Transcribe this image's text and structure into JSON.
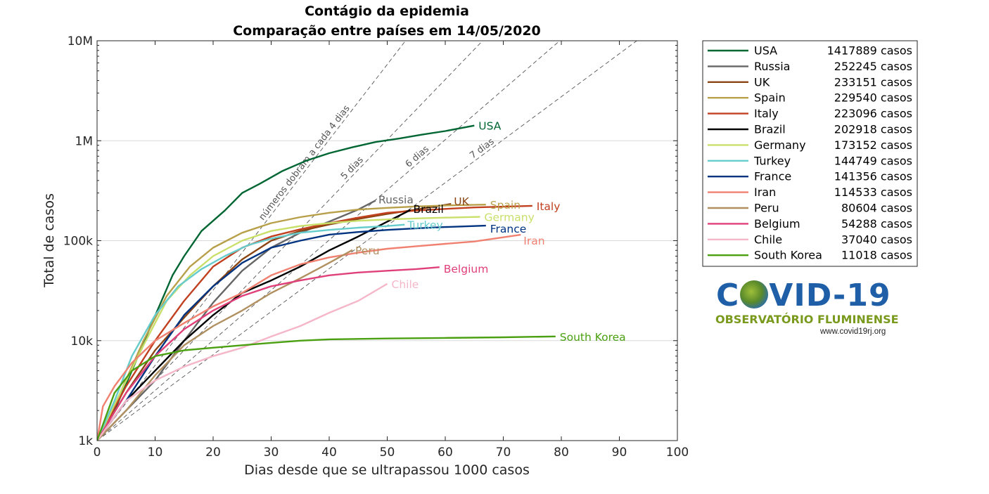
{
  "chart_data": {
    "type": "line",
    "title": "Contágio da epidemia",
    "subtitle": "Comparação entre países em 14/05/2020",
    "xlabel": "Dias desde que se ultrapassou 1000 casos",
    "ylabel": "Total de casos",
    "xlim": [
      0,
      100
    ],
    "ylim": [
      1000,
      10000000
    ],
    "yscale": "log",
    "grid": "horizontal",
    "legend_position": "outside-right",
    "x_ticks": [
      "0",
      "10",
      "20",
      "30",
      "40",
      "50",
      "60",
      "70",
      "80",
      "90",
      "100"
    ],
    "y_ticks": [
      {
        "value": 1000,
        "label": "1k"
      },
      {
        "value": 10000,
        "label": "10k"
      },
      {
        "value": 100000,
        "label": "100k"
      },
      {
        "value": 1000000,
        "label": "1M"
      },
      {
        "value": 10000000,
        "label": "10M"
      }
    ],
    "reference_lines": [
      {
        "doubling_days": 4,
        "label": "números dobram a cada 4 dias"
      },
      {
        "doubling_days": 5,
        "label": "5 dias"
      },
      {
        "doubling_days": 6,
        "label": "6 dias"
      },
      {
        "doubling_days": 7,
        "label": "7 dias"
      }
    ],
    "series": [
      {
        "name": "USA",
        "cases": "1417889",
        "color": "#006633",
        "points": [
          [
            0,
            1000
          ],
          [
            3,
            2000
          ],
          [
            6,
            5000
          ],
          [
            9,
            13000
          ],
          [
            13,
            45000
          ],
          [
            15,
            70000
          ],
          [
            18,
            125000
          ],
          [
            22,
            200000
          ],
          [
            25,
            300000
          ],
          [
            28,
            370000
          ],
          [
            32,
            500000
          ],
          [
            36,
            630000
          ],
          [
            40,
            750000
          ],
          [
            44,
            860000
          ],
          [
            48,
            970000
          ],
          [
            52,
            1050000
          ],
          [
            56,
            1150000
          ],
          [
            60,
            1250000
          ],
          [
            65,
            1417889
          ]
        ]
      },
      {
        "name": "Russia",
        "cases": "252245",
        "color": "#666666",
        "points": [
          [
            0,
            1000
          ],
          [
            5,
            2000
          ],
          [
            10,
            4000
          ],
          [
            15,
            10000
          ],
          [
            20,
            24000
          ],
          [
            25,
            50000
          ],
          [
            30,
            85000
          ],
          [
            35,
            120000
          ],
          [
            40,
            155000
          ],
          [
            45,
            205000
          ],
          [
            48,
            252245
          ]
        ]
      },
      {
        "name": "UK",
        "cases": "233151",
        "color": "#8b4513",
        "points": [
          [
            0,
            1000
          ],
          [
            5,
            3000
          ],
          [
            10,
            8000
          ],
          [
            15,
            17000
          ],
          [
            20,
            35000
          ],
          [
            25,
            65000
          ],
          [
            30,
            100000
          ],
          [
            35,
            125000
          ],
          [
            40,
            145000
          ],
          [
            45,
            165000
          ],
          [
            50,
            185000
          ],
          [
            55,
            205000
          ],
          [
            61,
            233151
          ]
        ]
      },
      {
        "name": "Spain",
        "cases": "229540",
        "color": "#b8a04a",
        "points": [
          [
            0,
            1000
          ],
          [
            4,
            3000
          ],
          [
            8,
            10000
          ],
          [
            12,
            28000
          ],
          [
            16,
            55000
          ],
          [
            20,
            85000
          ],
          [
            25,
            120000
          ],
          [
            30,
            150000
          ],
          [
            35,
            172000
          ],
          [
            40,
            190000
          ],
          [
            45,
            205000
          ],
          [
            50,
            213000
          ],
          [
            55,
            220000
          ],
          [
            60,
            225000
          ],
          [
            67,
            229540
          ]
        ]
      },
      {
        "name": "Italy",
        "cases": "223096",
        "color": "#c04020",
        "points": [
          [
            0,
            1000
          ],
          [
            5,
            3500
          ],
          [
            10,
            10000
          ],
          [
            15,
            25000
          ],
          [
            20,
            55000
          ],
          [
            25,
            85000
          ],
          [
            30,
            110000
          ],
          [
            35,
            130000
          ],
          [
            40,
            150000
          ],
          [
            45,
            170000
          ],
          [
            50,
            190000
          ],
          [
            55,
            200000
          ],
          [
            60,
            208000
          ],
          [
            65,
            215000
          ],
          [
            75,
            223096
          ]
        ]
      },
      {
        "name": "Brazil",
        "cases": "202918",
        "color": "#000000",
        "points": [
          [
            0,
            1000
          ],
          [
            5,
            2500
          ],
          [
            10,
            5000
          ],
          [
            15,
            10000
          ],
          [
            20,
            18000
          ],
          [
            25,
            30000
          ],
          [
            30,
            40000
          ],
          [
            35,
            55000
          ],
          [
            40,
            80000
          ],
          [
            45,
            110000
          ],
          [
            50,
            155000
          ],
          [
            54,
            202918
          ]
        ]
      },
      {
        "name": "Germany",
        "cases": "173152",
        "color": "#c8e06a",
        "points": [
          [
            0,
            1000
          ],
          [
            4,
            3000
          ],
          [
            8,
            9000
          ],
          [
            12,
            25000
          ],
          [
            16,
            45000
          ],
          [
            20,
            70000
          ],
          [
            25,
            100000
          ],
          [
            30,
            125000
          ],
          [
            35,
            140000
          ],
          [
            40,
            150000
          ],
          [
            45,
            158000
          ],
          [
            50,
            163000
          ],
          [
            55,
            167000
          ],
          [
            60,
            170000
          ],
          [
            66,
            173152
          ]
        ]
      },
      {
        "name": "Turkey",
        "cases": "144749",
        "color": "#66cccc",
        "points": [
          [
            0,
            1000
          ],
          [
            3,
            2500
          ],
          [
            6,
            7000
          ],
          [
            10,
            18000
          ],
          [
            14,
            35000
          ],
          [
            18,
            52000
          ],
          [
            22,
            70000
          ],
          [
            26,
            90000
          ],
          [
            30,
            105000
          ],
          [
            35,
            120000
          ],
          [
            40,
            128000
          ],
          [
            45,
            135000
          ],
          [
            50,
            140000
          ],
          [
            53,
            144749
          ]
        ]
      },
      {
        "name": "France",
        "cases": "141356",
        "color": "#003380",
        "points": [
          [
            0,
            1000
          ],
          [
            5,
            2500
          ],
          [
            10,
            7000
          ],
          [
            15,
            18000
          ],
          [
            20,
            35000
          ],
          [
            25,
            60000
          ],
          [
            30,
            85000
          ],
          [
            35,
            100000
          ],
          [
            40,
            115000
          ],
          [
            45,
            122000
          ],
          [
            50,
            128000
          ],
          [
            55,
            133000
          ],
          [
            60,
            137000
          ],
          [
            67,
            141356
          ]
        ]
      },
      {
        "name": "Iran",
        "cases": "114533",
        "color": "#f08070",
        "points": [
          [
            0,
            1000
          ],
          [
            1,
            2200
          ],
          [
            3,
            3500
          ],
          [
            6,
            6000
          ],
          [
            10,
            10000
          ],
          [
            15,
            15000
          ],
          [
            20,
            22000
          ],
          [
            25,
            30000
          ],
          [
            30,
            45000
          ],
          [
            35,
            58000
          ],
          [
            40,
            68000
          ],
          [
            45,
            76000
          ],
          [
            50,
            83000
          ],
          [
            55,
            88000
          ],
          [
            60,
            93000
          ],
          [
            65,
            98000
          ],
          [
            73,
            114533
          ]
        ]
      },
      {
        "name": "Peru",
        "cases": "80604",
        "color": "#b09060",
        "points": [
          [
            0,
            1000
          ],
          [
            5,
            2000
          ],
          [
            10,
            4500
          ],
          [
            15,
            9000
          ],
          [
            20,
            14000
          ],
          [
            25,
            20000
          ],
          [
            30,
            30000
          ],
          [
            35,
            42000
          ],
          [
            40,
            60000
          ],
          [
            44,
            80604
          ]
        ]
      },
      {
        "name": "Belgium",
        "cases": "54288",
        "color": "#e0407a",
        "points": [
          [
            0,
            1000
          ],
          [
            5,
            3000
          ],
          [
            10,
            7000
          ],
          [
            15,
            13000
          ],
          [
            20,
            20000
          ],
          [
            25,
            28000
          ],
          [
            30,
            35000
          ],
          [
            35,
            40000
          ],
          [
            40,
            45000
          ],
          [
            45,
            48000
          ],
          [
            50,
            50000
          ],
          [
            55,
            52000
          ],
          [
            59,
            54288
          ]
        ]
      },
      {
        "name": "Chile",
        "cases": "37040",
        "color": "#f4b6c8",
        "points": [
          [
            0,
            1000
          ],
          [
            5,
            2500
          ],
          [
            10,
            4000
          ],
          [
            15,
            5500
          ],
          [
            20,
            7000
          ],
          [
            25,
            8500
          ],
          [
            30,
            11000
          ],
          [
            35,
            14000
          ],
          [
            40,
            19000
          ],
          [
            45,
            25000
          ],
          [
            50,
            37040
          ]
        ]
      },
      {
        "name": "South Korea",
        "cases": "11018",
        "color": "#4aa010",
        "points": [
          [
            0,
            1000
          ],
          [
            3,
            3000
          ],
          [
            6,
            5000
          ],
          [
            10,
            7000
          ],
          [
            15,
            8000
          ],
          [
            20,
            8500
          ],
          [
            25,
            9000
          ],
          [
            30,
            9500
          ],
          [
            35,
            10000
          ],
          [
            40,
            10300
          ],
          [
            50,
            10500
          ],
          [
            60,
            10650
          ],
          [
            70,
            10800
          ],
          [
            79,
            11018
          ]
        ]
      }
    ]
  },
  "legend": {
    "unit": "casos"
  },
  "logo": {
    "title_left": "C",
    "title_right": "VID-19",
    "subtitle": "OBSERVATÓRIO FLUMINENSE",
    "url": "www.covid19rj.org"
  }
}
